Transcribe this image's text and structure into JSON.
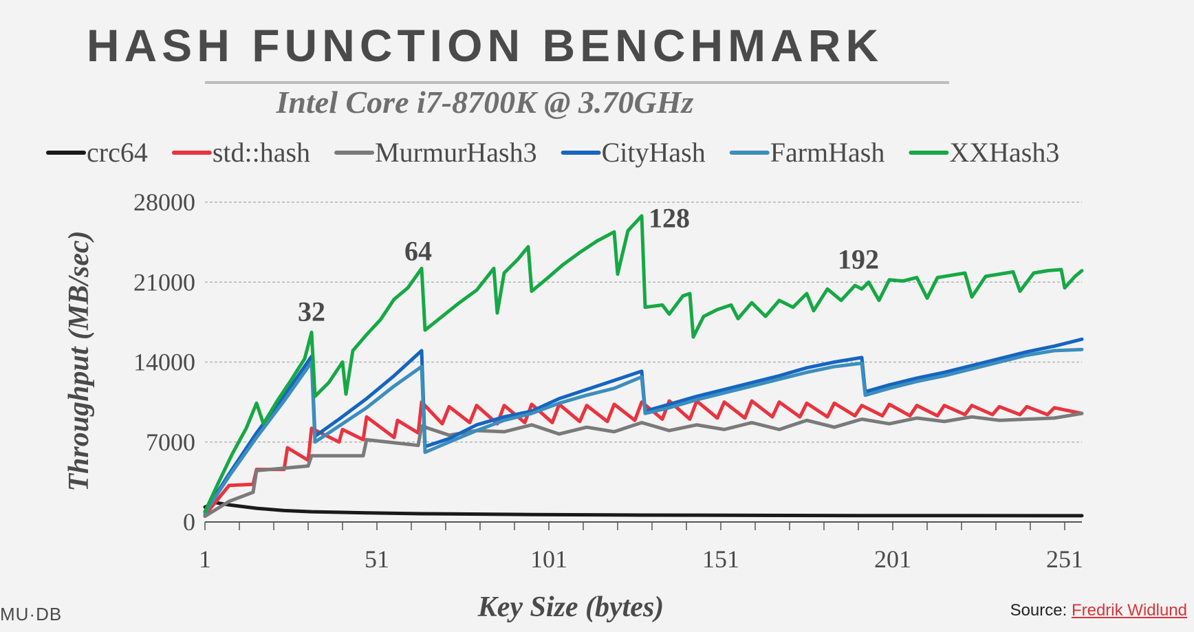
{
  "slide": {
    "title": "HASH FUNCTION BENCHMARK",
    "subtitle": "Intel Core i7-8700K @ 3.70GHz",
    "logo_text": "MU·DB",
    "source_label": "Source:",
    "source_link": "Fredrik Widlund"
  },
  "chart_data": {
    "type": "line",
    "xlabel": "Key Size (bytes)",
    "ylabel": "Throughput (MB/sec)",
    "xlim": [
      1,
      256
    ],
    "ylim": [
      0,
      28000
    ],
    "xticks": [
      1,
      51,
      101,
      151,
      201,
      251
    ],
    "yticks": [
      0,
      7000,
      14000,
      21000,
      28000
    ],
    "grid": "horizontal dashed",
    "legend_position": "top",
    "annotations": [
      {
        "text": "32",
        "x": 32,
        "y": 17600
      },
      {
        "text": "64",
        "x": 63,
        "y": 22900
      },
      {
        "text": "128",
        "x": 136,
        "y": 25800
      },
      {
        "text": "192",
        "x": 191,
        "y": 22200
      }
    ],
    "series": [
      {
        "name": "crc64",
        "color": "#1a1a1a",
        "points": [
          [
            1,
            1300
          ],
          [
            4,
            1700
          ],
          [
            8,
            1500
          ],
          [
            16,
            1200
          ],
          [
            24,
            1000
          ],
          [
            32,
            900
          ],
          [
            48,
            800
          ],
          [
            64,
            720
          ],
          [
            96,
            650
          ],
          [
            128,
            600
          ],
          [
            192,
            560
          ],
          [
            256,
            550
          ]
        ]
      },
      {
        "name": "std::hash",
        "color": "#e8343f",
        "points": [
          [
            1,
            600
          ],
          [
            8,
            3200
          ],
          [
            15,
            3300
          ],
          [
            16,
            4600
          ],
          [
            24,
            4600
          ],
          [
            25,
            6500
          ],
          [
            31,
            5400
          ],
          [
            32,
            8200
          ],
          [
            40,
            7000
          ],
          [
            41,
            8100
          ],
          [
            47,
            7200
          ],
          [
            48,
            9200
          ],
          [
            56,
            7400
          ],
          [
            57,
            8900
          ],
          [
            63,
            7800
          ],
          [
            64,
            10500
          ],
          [
            70,
            8600
          ],
          [
            72,
            10100
          ],
          [
            78,
            8700
          ],
          [
            80,
            10200
          ],
          [
            86,
            8600
          ],
          [
            88,
            10200
          ],
          [
            94,
            8700
          ],
          [
            96,
            10300
          ],
          [
            102,
            8700
          ],
          [
            104,
            10300
          ],
          [
            110,
            8800
          ],
          [
            112,
            10200
          ],
          [
            118,
            8800
          ],
          [
            120,
            10300
          ],
          [
            126,
            8900
          ],
          [
            128,
            10500
          ],
          [
            134,
            9000
          ],
          [
            136,
            10600
          ],
          [
            142,
            9000
          ],
          [
            144,
            10600
          ],
          [
            150,
            9100
          ],
          [
            152,
            10500
          ],
          [
            158,
            9100
          ],
          [
            160,
            10600
          ],
          [
            166,
            9200
          ],
          [
            168,
            10500
          ],
          [
            174,
            9200
          ],
          [
            176,
            10400
          ],
          [
            182,
            9200
          ],
          [
            184,
            10400
          ],
          [
            190,
            9300
          ],
          [
            192,
            10200
          ],
          [
            198,
            9300
          ],
          [
            200,
            10300
          ],
          [
            206,
            9300
          ],
          [
            208,
            10200
          ],
          [
            214,
            9300
          ],
          [
            216,
            10200
          ],
          [
            222,
            9400
          ],
          [
            224,
            10200
          ],
          [
            230,
            9400
          ],
          [
            232,
            10100
          ],
          [
            238,
            9400
          ],
          [
            240,
            10100
          ],
          [
            246,
            9400
          ],
          [
            248,
            10000
          ],
          [
            256,
            9500
          ]
        ]
      },
      {
        "name": "MurmurHash3",
        "color": "#7a7a7a",
        "points": [
          [
            1,
            500
          ],
          [
            8,
            1800
          ],
          [
            15,
            2600
          ],
          [
            16,
            4500
          ],
          [
            31,
            4900
          ],
          [
            32,
            5800
          ],
          [
            47,
            5800
          ],
          [
            48,
            7200
          ],
          [
            63,
            6700
          ],
          [
            64,
            8400
          ],
          [
            72,
            7600
          ],
          [
            80,
            8000
          ],
          [
            88,
            7900
          ],
          [
            96,
            8500
          ],
          [
            104,
            7700
          ],
          [
            112,
            8300
          ],
          [
            120,
            7900
          ],
          [
            128,
            8700
          ],
          [
            136,
            8000
          ],
          [
            144,
            8500
          ],
          [
            152,
            8100
          ],
          [
            160,
            8700
          ],
          [
            168,
            8100
          ],
          [
            176,
            8900
          ],
          [
            184,
            8300
          ],
          [
            192,
            9000
          ],
          [
            200,
            8600
          ],
          [
            208,
            9100
          ],
          [
            216,
            8800
          ],
          [
            224,
            9200
          ],
          [
            232,
            8900
          ],
          [
            240,
            9000
          ],
          [
            248,
            9100
          ],
          [
            256,
            9500
          ]
        ]
      },
      {
        "name": "CityHash",
        "color": "#1565c0",
        "points": [
          [
            1,
            900
          ],
          [
            8,
            4200
          ],
          [
            16,
            7800
          ],
          [
            24,
            11000
          ],
          [
            32,
            14500
          ],
          [
            33,
            7500
          ],
          [
            40,
            9000
          ],
          [
            48,
            10800
          ],
          [
            56,
            12800
          ],
          [
            64,
            15000
          ],
          [
            65,
            6600
          ],
          [
            72,
            7300
          ],
          [
            80,
            8500
          ],
          [
            88,
            9200
          ],
          [
            96,
            9700
          ],
          [
            104,
            10800
          ],
          [
            112,
            11600
          ],
          [
            120,
            12400
          ],
          [
            128,
            13200
          ],
          [
            129,
            9700
          ],
          [
            136,
            10300
          ],
          [
            144,
            11000
          ],
          [
            152,
            11600
          ],
          [
            160,
            12200
          ],
          [
            168,
            12800
          ],
          [
            176,
            13500
          ],
          [
            184,
            14000
          ],
          [
            192,
            14400
          ],
          [
            193,
            11400
          ],
          [
            200,
            12000
          ],
          [
            208,
            12600
          ],
          [
            216,
            13100
          ],
          [
            224,
            13700
          ],
          [
            232,
            14300
          ],
          [
            240,
            14900
          ],
          [
            248,
            15400
          ],
          [
            256,
            16000
          ]
        ]
      },
      {
        "name": "FarmHash",
        "color": "#3c8ebd",
        "points": [
          [
            1,
            800
          ],
          [
            8,
            4000
          ],
          [
            16,
            7400
          ],
          [
            24,
            10600
          ],
          [
            32,
            14000
          ],
          [
            33,
            7000
          ],
          [
            40,
            8400
          ],
          [
            48,
            10000
          ],
          [
            56,
            11900
          ],
          [
            64,
            13600
          ],
          [
            65,
            6100
          ],
          [
            72,
            7000
          ],
          [
            80,
            8000
          ],
          [
            88,
            8900
          ],
          [
            96,
            9500
          ],
          [
            104,
            10400
          ],
          [
            112,
            11100
          ],
          [
            120,
            11700
          ],
          [
            128,
            12700
          ],
          [
            129,
            9500
          ],
          [
            136,
            10000
          ],
          [
            144,
            10700
          ],
          [
            152,
            11300
          ],
          [
            160,
            11900
          ],
          [
            168,
            12500
          ],
          [
            176,
            13100
          ],
          [
            184,
            13600
          ],
          [
            192,
            13900
          ],
          [
            193,
            11100
          ],
          [
            200,
            11700
          ],
          [
            208,
            12300
          ],
          [
            216,
            12800
          ],
          [
            224,
            13400
          ],
          [
            232,
            14000
          ],
          [
            240,
            14600
          ],
          [
            248,
            15000
          ],
          [
            256,
            15100
          ]
        ]
      },
      {
        "name": "XXHash3",
        "color": "#16a845",
        "points": [
          [
            1,
            900
          ],
          [
            5,
            3500
          ],
          [
            9,
            6000
          ],
          [
            13,
            8200
          ],
          [
            16,
            10400
          ],
          [
            18,
            8600
          ],
          [
            22,
            10600
          ],
          [
            26,
            12400
          ],
          [
            30,
            14300
          ],
          [
            32,
            16600
          ],
          [
            33,
            11000
          ],
          [
            37,
            12200
          ],
          [
            41,
            14000
          ],
          [
            42,
            11200
          ],
          [
            44,
            15000
          ],
          [
            48,
            16400
          ],
          [
            52,
            17700
          ],
          [
            56,
            19500
          ],
          [
            60,
            20500
          ],
          [
            64,
            22200
          ],
          [
            65,
            16800
          ],
          [
            70,
            18000
          ],
          [
            75,
            19200
          ],
          [
            80,
            20300
          ],
          [
            85,
            22200
          ],
          [
            86,
            18300
          ],
          [
            88,
            21800
          ],
          [
            92,
            23000
          ],
          [
            95,
            24100
          ],
          [
            96,
            20200
          ],
          [
            100,
            21200
          ],
          [
            105,
            22500
          ],
          [
            110,
            23600
          ],
          [
            115,
            24600
          ],
          [
            120,
            25400
          ],
          [
            121,
            21700
          ],
          [
            124,
            25500
          ],
          [
            128,
            26800
          ],
          [
            129,
            18800
          ],
          [
            134,
            19000
          ],
          [
            136,
            18200
          ],
          [
            140,
            19800
          ],
          [
            142,
            20000
          ],
          [
            143,
            16200
          ],
          [
            146,
            18000
          ],
          [
            150,
            18600
          ],
          [
            154,
            19000
          ],
          [
            156,
            17800
          ],
          [
            160,
            19200
          ],
          [
            164,
            18000
          ],
          [
            168,
            19400
          ],
          [
            172,
            18800
          ],
          [
            176,
            20000
          ],
          [
            178,
            18500
          ],
          [
            182,
            20400
          ],
          [
            186,
            19400
          ],
          [
            190,
            20700
          ],
          [
            192,
            20400
          ],
          [
            194,
            21000
          ],
          [
            197,
            19400
          ],
          [
            200,
            21200
          ],
          [
            204,
            21100
          ],
          [
            208,
            21400
          ],
          [
            211,
            19600
          ],
          [
            214,
            21400
          ],
          [
            218,
            21600
          ],
          [
            222,
            21800
          ],
          [
            224,
            19700
          ],
          [
            228,
            21500
          ],
          [
            232,
            21700
          ],
          [
            236,
            21900
          ],
          [
            238,
            20200
          ],
          [
            242,
            21800
          ],
          [
            246,
            22000
          ],
          [
            250,
            22100
          ],
          [
            251,
            20500
          ],
          [
            254,
            21500
          ],
          [
            256,
            22000
          ]
        ]
      }
    ]
  }
}
